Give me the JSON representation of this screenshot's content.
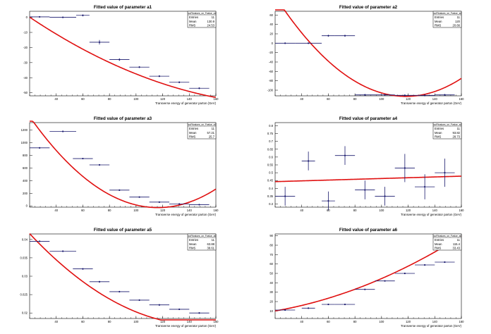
{
  "colors": {
    "marker": "#1a1a6e",
    "fit": "#e01010",
    "axis": "#000000"
  },
  "chart_data": [
    {
      "type": "scatter",
      "title": "Fitted value of parameter a1",
      "xlabel": "Transverse energy of generator parton (GeV)",
      "ylabel": "",
      "exponent": "",
      "xlim": [
        20,
        160
      ],
      "xticks": [
        40,
        60,
        80,
        100,
        120,
        140,
        160
      ],
      "ylim": [
        -52,
        4
      ],
      "yticks": [
        0,
        -10,
        -20,
        -30,
        -40,
        -50
      ],
      "ytick_labels": [
        "0",
        "-10",
        "-20",
        "-30",
        "-40",
        "-50"
      ],
      "points": [
        {
          "x": 27.5,
          "y": 0.3,
          "xerr": 7.5,
          "yerr": 0.4
        },
        {
          "x": 45,
          "y": 0.0,
          "xerr": 10,
          "yerr": 0.4
        },
        {
          "x": 60,
          "y": 1.3,
          "xerr": 5,
          "yerr": 0.6
        },
        {
          "x": 72.5,
          "y": -16.5,
          "xerr": 7.5,
          "yerr": 1.5
        },
        {
          "x": 87.5,
          "y": -28,
          "xerr": 7.5,
          "yerr": 0.8
        },
        {
          "x": 102.5,
          "y": -33,
          "xerr": 7.5,
          "yerr": 0.5
        },
        {
          "x": 117.5,
          "y": -39,
          "xerr": 7.5,
          "yerr": 0.5
        },
        {
          "x": 132.5,
          "y": -43,
          "xerr": 7.5,
          "yerr": 0.5
        },
        {
          "x": 147.5,
          "y": -47,
          "xerr": 7.5,
          "yerr": 0.5
        }
      ],
      "fit": {
        "type": "quadratic",
        "coefficients": [
          12.5,
          -0.65,
          0.0015
        ]
      },
      "stats": {
        "header": "rcoFitvalues_on_Fvalue_a1",
        "Entries": "11",
        "Mean": "130.9",
        "RMS": "24.53"
      }
    },
    {
      "type": "scatter",
      "title": "Fitted value of parameter a2",
      "xlabel": "Transverse energy of generator parton (GeV)",
      "ylabel": "",
      "exponent": "",
      "xlim": [
        20,
        160
      ],
      "xticks": [
        40,
        60,
        80,
        100,
        120,
        140,
        160
      ],
      "ylim": [
        -112,
        68
      ],
      "yticks": [
        60,
        40,
        20,
        0,
        -20,
        -40,
        -60,
        -80,
        -100
      ],
      "ytick_labels": [
        "60",
        "40",
        "20",
        "0",
        "-20",
        "-40",
        "-60",
        "-80",
        "-100"
      ],
      "points": [
        {
          "x": 27.5,
          "y": 0,
          "xerr": 7.5,
          "yerr": 1
        },
        {
          "x": 45,
          "y": 0,
          "xerr": 10,
          "yerr": 1
        },
        {
          "x": 60,
          "y": 16,
          "xerr": 5,
          "yerr": 2
        },
        {
          "x": 72.5,
          "y": 16,
          "xerr": 7.5,
          "yerr": 2
        },
        {
          "x": 87.5,
          "y": -110,
          "xerr": 7.5,
          "yerr": 2
        },
        {
          "x": 102.5,
          "y": -110,
          "xerr": 7.5,
          "yerr": 2
        },
        {
          "x": 117.5,
          "y": -111,
          "xerr": 7.5,
          "yerr": 2
        },
        {
          "x": 132.5,
          "y": -111,
          "xerr": 7.5,
          "yerr": 2
        },
        {
          "x": 147.5,
          "y": -110,
          "xerr": 7.5,
          "yerr": 2
        }
      ],
      "fit": {
        "type": "quadratic",
        "coefficients": [
          195.3,
          -5.215,
          0.02204
        ]
      },
      "stats": {
        "header": "rcoFitvalues_on_Fvalue_a2",
        "Entries": "11",
        "Mean": "120",
        "RMS": "20.66"
      }
    },
    {
      "type": "scatter",
      "title": "Fitted value of parameter a3",
      "xlabel": "Transverse energy of generator parton (GeV)",
      "ylabel": "",
      "exponent": "",
      "xlim": [
        20,
        160
      ],
      "xticks": [
        40,
        60,
        80,
        100,
        120,
        140,
        160
      ],
      "ylim": [
        -20,
        1320
      ],
      "yticks": [
        0,
        200,
        400,
        600,
        800,
        1000,
        1200
      ],
      "ytick_labels": [
        "0",
        "200",
        "400",
        "600",
        "800",
        "1000",
        "1200"
      ],
      "points": [
        {
          "x": 27.5,
          "y": 920,
          "xerr": 7.5,
          "yerr": 10
        },
        {
          "x": 45,
          "y": 1180,
          "xerr": 10,
          "yerr": 10
        },
        {
          "x": 60,
          "y": 750,
          "xerr": 7.5,
          "yerr": 10
        },
        {
          "x": 72.5,
          "y": 650,
          "xerr": 7.5,
          "yerr": 10
        },
        {
          "x": 87.5,
          "y": 250,
          "xerr": 7.5,
          "yerr": 10
        },
        {
          "x": 102.5,
          "y": 140,
          "xerr": 7.5,
          "yerr": 10
        },
        {
          "x": 117.5,
          "y": 60,
          "xerr": 7.5,
          "yerr": 8
        },
        {
          "x": 132.5,
          "y": 30,
          "xerr": 7.5,
          "yerr": 8
        },
        {
          "x": 147.5,
          "y": 20,
          "xerr": 7.5,
          "yerr": 8
        }
      ],
      "fit": {
        "type": "quadratic",
        "coefficients": [
          2075,
          -36.1,
          0.155
        ]
      },
      "stats": {
        "header": "rcoFitvalues_on_Fvalue_a3",
        "Entries": "11",
        "Mean": "57.21",
        "RMS": "25.7"
      }
    },
    {
      "type": "scatter",
      "title": "Fitted value of parameter a4",
      "xlabel": "Transverse energy of generator parton (GeV)",
      "ylabel": "",
      "exponent": "",
      "xlim": [
        20,
        160
      ],
      "xticks": [
        40,
        60,
        80,
        100,
        120,
        140,
        160
      ],
      "ylim": [
        0.28,
        0.82
      ],
      "yticks": [
        0.3,
        0.35,
        0.4,
        0.45,
        0.5,
        0.55,
        0.6,
        0.65,
        0.7,
        0.75,
        0.8
      ],
      "ytick_labels": [
        "0.3",
        "0.35",
        "0.4",
        "0.45",
        "0.5",
        "0.55",
        "0.6",
        "0.65",
        "0.7",
        "0.75",
        "0.8"
      ],
      "points": [
        {
          "x": 27.5,
          "y": 0.35,
          "xerr": 7.5,
          "yerr": 0.06
        },
        {
          "x": 45,
          "y": 0.575,
          "xerr": 5,
          "yerr": 0.06
        },
        {
          "x": 60,
          "y": 0.32,
          "xerr": 5,
          "yerr": 0.06
        },
        {
          "x": 72.5,
          "y": 0.61,
          "xerr": 7.5,
          "yerr": 0.06
        },
        {
          "x": 87.5,
          "y": 0.39,
          "xerr": 7.5,
          "yerr": 0.06
        },
        {
          "x": 102.5,
          "y": 0.35,
          "xerr": 7.5,
          "yerr": 0.06
        },
        {
          "x": 117.5,
          "y": 0.53,
          "xerr": 7.5,
          "yerr": 0.09
        },
        {
          "x": 132.5,
          "y": 0.41,
          "xerr": 7.5,
          "yerr": 0.08
        },
        {
          "x": 147.5,
          "y": 0.5,
          "xerr": 7.5,
          "yerr": 0.09
        }
      ],
      "fit": {
        "type": "linear",
        "coefficients": [
          0.438,
          0.00025
        ]
      },
      "stats": {
        "header": "rcoFitvalues_on_Fvalue_a4",
        "Entries": "11",
        "Mean": "93.82",
        "RMS": "28.73"
      }
    },
    {
      "type": "scatter",
      "title": "Fitted value of parameter a5",
      "xlabel": "Transverse energy of generator parton (GeV)",
      "ylabel": "",
      "exponent": "",
      "xlim": [
        20,
        160
      ],
      "xticks": [
        40,
        60,
        80,
        100,
        120,
        140,
        160
      ],
      "ylim": [
        0.0185,
        0.0415
      ],
      "yticks": [
        0.02,
        0.025,
        0.03,
        0.035,
        0.04
      ],
      "ytick_labels": [
        "0.02",
        "0.025",
        "0.03",
        "0.035",
        "0.04"
      ],
      "points": [
        {
          "x": 27.5,
          "y": 0.0395,
          "xerr": 7.5,
          "yerr": 0.0002
        },
        {
          "x": 45,
          "y": 0.0368,
          "xerr": 10,
          "yerr": 0.0002
        },
        {
          "x": 60,
          "y": 0.032,
          "xerr": 7.5,
          "yerr": 0.0002
        },
        {
          "x": 72.5,
          "y": 0.0285,
          "xerr": 7.5,
          "yerr": 0.0002
        },
        {
          "x": 87.5,
          "y": 0.0258,
          "xerr": 7.5,
          "yerr": 0.0002
        },
        {
          "x": 102.5,
          "y": 0.0235,
          "xerr": 7.5,
          "yerr": 0.0002
        },
        {
          "x": 117.5,
          "y": 0.0222,
          "xerr": 7.5,
          "yerr": 0.0002
        },
        {
          "x": 132.5,
          "y": 0.021,
          "xerr": 7.5,
          "yerr": 0.0002
        },
        {
          "x": 147.5,
          "y": 0.02,
          "xerr": 7.5,
          "yerr": 0.0002
        }
      ],
      "fit": {
        "type": "quadratic",
        "coefficients": [
          0.0499,
          -0.000446,
          1.5e-06
        ]
      },
      "stats": {
        "header": "rcoFitvalues_on_Fvalue_a5",
        "Entries": "11",
        "Mean": "63.88",
        "RMS": "38.61"
      }
    },
    {
      "type": "scatter",
      "title": "Fitted value of parameter a6",
      "xlabel": "Transverse energy of generator parton (GeV)",
      "ylabel": "",
      "exponent": "",
      "xlim": [
        20,
        160
      ],
      "xticks": [
        40,
        60,
        80,
        100,
        120,
        140,
        160
      ],
      "ylim": [
        2,
        92
      ],
      "yticks": [
        10,
        20,
        30,
        40,
        50,
        60,
        70,
        80,
        90
      ],
      "ytick_labels": [
        "10",
        "20",
        "30",
        "40",
        "50",
        "60",
        "70",
        "80",
        "90"
      ],
      "points": [
        {
          "x": 27.5,
          "y": 11,
          "xerr": 7.5,
          "yerr": 0.5
        },
        {
          "x": 45,
          "y": 13,
          "xerr": 5,
          "yerr": 0.5
        },
        {
          "x": 60,
          "y": 17,
          "xerr": 5,
          "yerr": 0.5
        },
        {
          "x": 72.5,
          "y": 17,
          "xerr": 7.5,
          "yerr": 0.5
        },
        {
          "x": 87.5,
          "y": 33,
          "xerr": 7.5,
          "yerr": 0.5
        },
        {
          "x": 102.5,
          "y": 42,
          "xerr": 7.5,
          "yerr": 0.5
        },
        {
          "x": 117.5,
          "y": 50,
          "xerr": 7.5,
          "yerr": 0.5
        },
        {
          "x": 132.5,
          "y": 59,
          "xerr": 7.5,
          "yerr": 0.5
        },
        {
          "x": 147.5,
          "y": 62,
          "xerr": 7.5,
          "yerr": 0.5
        }
      ],
      "fit": {
        "type": "quadratic",
        "coefficients": [
          6.0,
          0.155,
          0.0023
        ]
      },
      "stats": {
        "header": "rcoFitvalues_on_Fvalue_a6",
        "Entries": "11",
        "Mean": "115.4",
        "RMS": "33.43"
      }
    }
  ]
}
